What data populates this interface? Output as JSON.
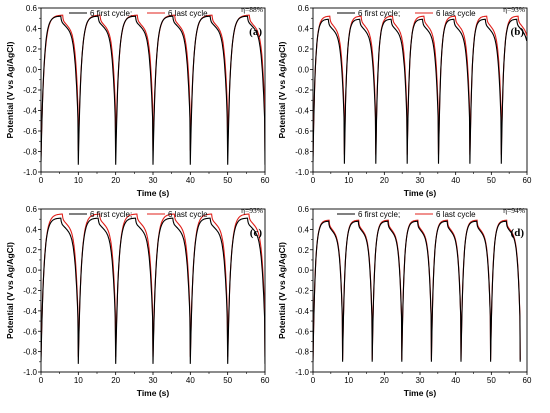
{
  "colors": {
    "first_cycle": "#000000",
    "last_cycle": "#e0201b"
  },
  "chart_data": [
    {
      "type": "line",
      "panel_label": "(a)",
      "efficiency": "η=88%",
      "xlabel": "Time (s)",
      "ylabel": "Potential (V vs Ag/AgCl)",
      "xlim": [
        0,
        60
      ],
      "ylim": [
        -1.0,
        0.6
      ],
      "xticks": [
        "0",
        "10",
        "20",
        "30",
        "40",
        "50",
        "60"
      ],
      "yticks": [
        "-1.0",
        "-0.8",
        "-0.6",
        "-0.4",
        "-0.2",
        "0.0",
        "0.2",
        "0.4",
        "0.6"
      ],
      "legend": [
        "6 first cycle;",
        "6 last cycle"
      ],
      "series": [
        {
          "name": "6 first cycle;",
          "period_s": 10,
          "cycles": 6,
          "charge_s": 5.3,
          "v_start": -0.9,
          "v_max": 0.52,
          "v_min": -0.93
        },
        {
          "name": "6 last cycle",
          "period_s": 10,
          "cycles": 6,
          "charge_s": 5.8,
          "v_start": -0.85,
          "v_max": 0.53,
          "v_min": -0.79
        }
      ]
    },
    {
      "type": "line",
      "panel_label": "(b)",
      "efficiency": "η=93%",
      "xlabel": "Time (s)",
      "ylabel": "Potential (V vs Ag/AgCl)",
      "xlim": [
        0,
        60
      ],
      "ylim": [
        -1.0,
        0.6
      ],
      "xticks": [
        "0",
        "10",
        "20",
        "30",
        "40",
        "50",
        "60"
      ],
      "yticks": [
        "-1.0",
        "-0.8",
        "-0.6",
        "-0.4",
        "-0.2",
        "0.0",
        "0.2",
        "0.4",
        "0.6"
      ],
      "legend": [
        "6 first cycle;",
        "6 last cycle"
      ],
      "series": [
        {
          "name": "6 first cycle;",
          "period_s": 8.8,
          "cycles": 7,
          "charge_s": 4.3,
          "v_start": -0.9,
          "v_max": 0.49,
          "v_min": -0.92
        },
        {
          "name": "6 last cycle",
          "period_s": 8.8,
          "cycles": 7,
          "charge_s": 4.7,
          "v_start": -0.85,
          "v_max": 0.52,
          "v_min": -0.83
        }
      ]
    },
    {
      "type": "line",
      "panel_label": "(c)",
      "efficiency": "η=93%",
      "xlabel": "Time (s)",
      "ylabel": "Potential (V vs Ag/AgCl)",
      "xlim": [
        0,
        60
      ],
      "ylim": [
        -1.0,
        0.6
      ],
      "xticks": [
        "0",
        "10",
        "20",
        "30",
        "40",
        "50",
        "60"
      ],
      "yticks": [
        "-1.0",
        "-0.8",
        "-0.6",
        "-0.4",
        "-0.2",
        "0.0",
        "0.2",
        "0.4",
        "0.6"
      ],
      "legend": [
        "6 first cycle;",
        "6 last cycle"
      ],
      "series": [
        {
          "name": "6 first cycle;",
          "period_s": 10,
          "cycles": 6,
          "charge_s": 5.3,
          "v_start": -0.9,
          "v_max": 0.51,
          "v_min": -0.92
        },
        {
          "name": "6 last cycle",
          "period_s": 10,
          "cycles": 6,
          "charge_s": 5.7,
          "v_start": -0.85,
          "v_max": 0.55,
          "v_min": -0.85
        }
      ]
    },
    {
      "type": "line",
      "panel_label": "(d)",
      "efficiency": "η=94%",
      "xlabel": "Time (s)",
      "ylabel": "Potential (V vs Ag/AgCl)",
      "xlim": [
        0,
        60
      ],
      "ylim": [
        -1.0,
        0.6
      ],
      "xticks": [
        "0",
        "10",
        "20",
        "30",
        "40",
        "50",
        "60"
      ],
      "yticks": [
        "-1.0",
        "-0.8",
        "-0.6",
        "-0.4",
        "-0.2",
        "0.0",
        "0.2",
        "0.4",
        "0.6"
      ],
      "legend": [
        "6 first cycle;",
        "6 last cycle"
      ],
      "series": [
        {
          "name": "6 first cycle;",
          "period_s": 8.3,
          "cycles": 7,
          "charge_s": 4.4,
          "v_start": -0.9,
          "v_max": 0.48,
          "v_min": -0.9
        },
        {
          "name": "6 last cycle",
          "period_s": 8.3,
          "cycles": 7,
          "charge_s": 4.5,
          "v_start": -0.88,
          "v_max": 0.49,
          "v_min": -0.88
        }
      ]
    }
  ]
}
